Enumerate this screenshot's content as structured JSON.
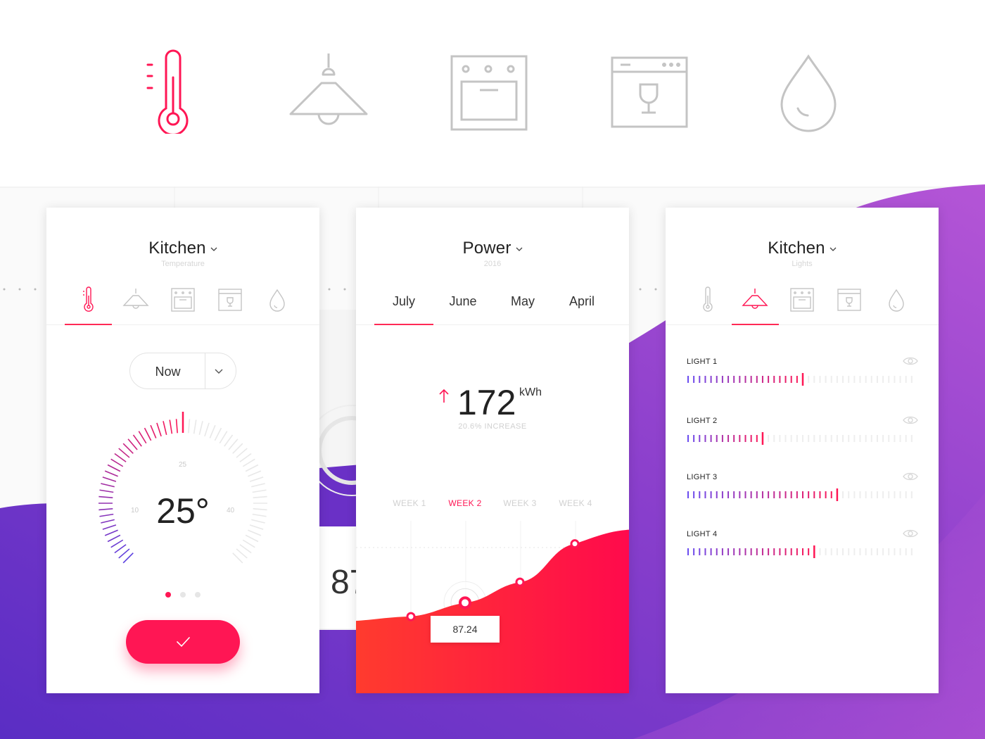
{
  "colors": {
    "accent": "#ff1654",
    "purple": "#6a2fc8",
    "magenta": "#c05ad6",
    "icon_gray": "#c4c4c4",
    "label_gray": "#d0d0d0"
  },
  "top_icons": [
    {
      "name": "thermometer-icon",
      "active": true
    },
    {
      "name": "lamp-icon",
      "active": false
    },
    {
      "name": "oven-icon",
      "active": false
    },
    {
      "name": "dishwasher-icon",
      "active": false
    },
    {
      "name": "water-drop-icon",
      "active": false
    }
  ],
  "temperature_panel": {
    "title": "Kitchen",
    "subtitle": "Temperature",
    "active_tab": "thermometer-icon",
    "time_select": "Now",
    "dial": {
      "min_label": "10",
      "mid_label": "25",
      "max_label": "40",
      "value_text": "25°",
      "level": 0.5
    },
    "page_dots": {
      "count": 3,
      "active": 0
    }
  },
  "power_panel": {
    "title": "Power",
    "subtitle": "2016",
    "months": [
      "July",
      "June",
      "May",
      "April"
    ],
    "active_month": "July",
    "value": "172",
    "unit": "kWh",
    "increase_text": "20.6% INCREASE",
    "weeks": [
      "WEEK 1",
      "WEEK 2",
      "WEEK 3",
      "WEEK 4"
    ],
    "active_week": "WEEK 2",
    "tooltip_value": "87.24"
  },
  "chart_data": {
    "type": "area",
    "categories": [
      "WEEK 1",
      "WEEK 2",
      "WEEK 3",
      "WEEK 4"
    ],
    "values": [
      80,
      87.24,
      98,
      118
    ],
    "ylim": [
      40,
      130
    ],
    "highlight": {
      "category": "WEEK 2",
      "label": "87.24"
    }
  },
  "lights_panel": {
    "title": "Kitchen",
    "subtitle": "Lights",
    "active_tab": "lamp-icon",
    "lights": [
      {
        "label": "LIGHT 1",
        "level": 0.49
      },
      {
        "label": "LIGHT 2",
        "level": 0.32
      },
      {
        "label": "LIGHT 3",
        "level": 0.65
      },
      {
        "label": "LIGHT 4",
        "level": 0.56
      }
    ]
  },
  "background_partial": {
    "number_fragment": "87"
  }
}
